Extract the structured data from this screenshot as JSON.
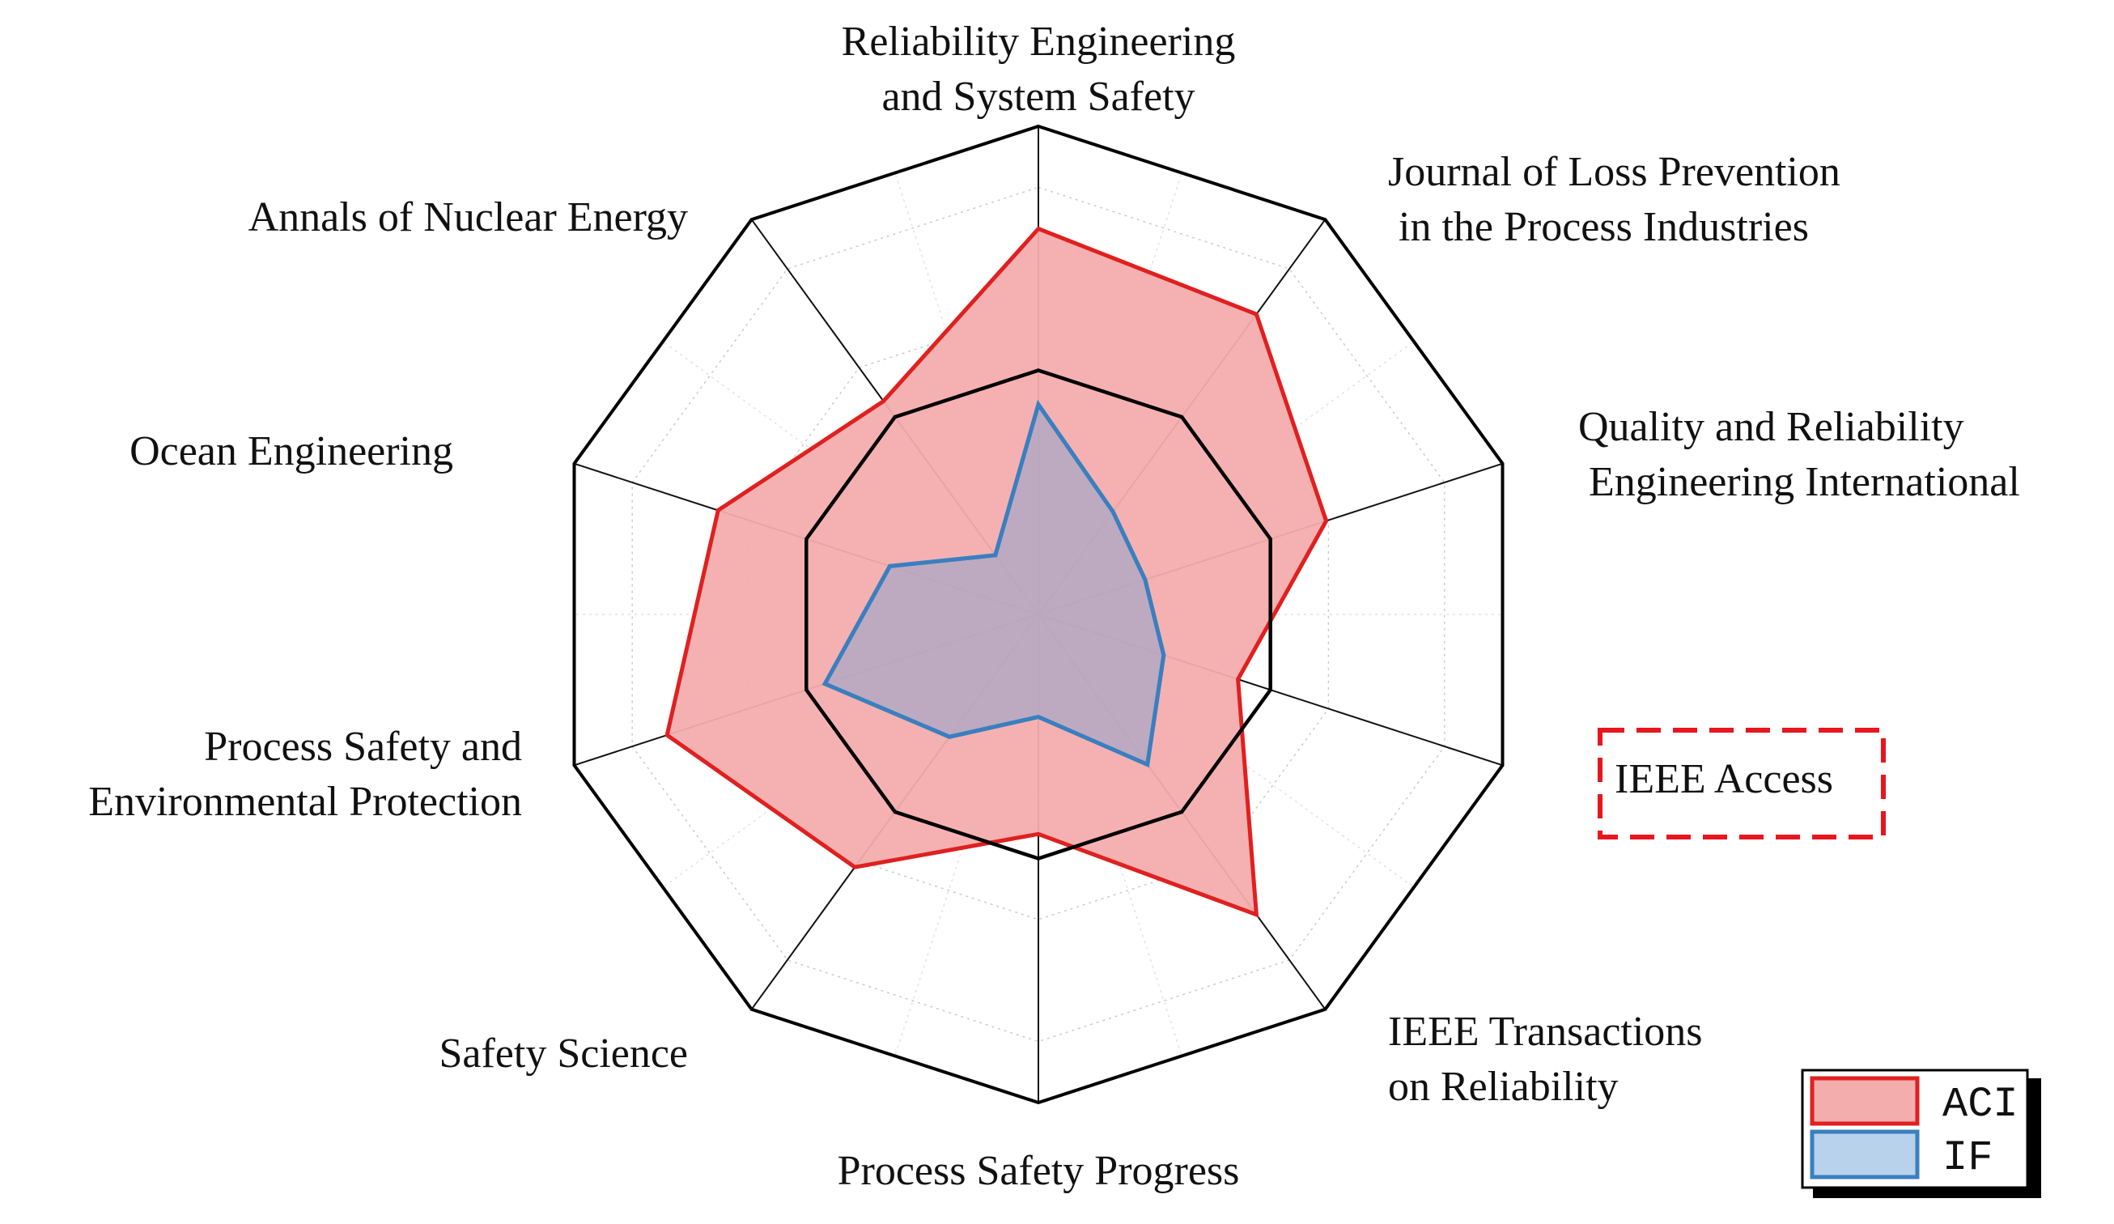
{
  "chart_data": {
    "type": "radar",
    "title": "",
    "axes": [
      {
        "label_lines": [
          "Reliability Engineering",
          "and System Safety"
        ],
        "anchor": "middle"
      },
      {
        "label_lines": [
          "Journal of Loss Prevention",
          " in the Process Industries"
        ],
        "anchor": "start"
      },
      {
        "label_lines": [
          "Quality and Reliability",
          " Engineering International"
        ],
        "anchor": "start"
      },
      {
        "label_lines": [
          "IEEE Access"
        ],
        "anchor": "start",
        "highlighted": true
      },
      {
        "label_lines": [
          "IEEE Transactions",
          "on Reliability"
        ],
        "anchor": "start"
      },
      {
        "label_lines": [
          "Process Safety Progress"
        ],
        "anchor": "middle"
      },
      {
        "label_lines": [
          "Safety Science"
        ],
        "anchor": "end"
      },
      {
        "label_lines": [
          "Process Safety and",
          "Environmental Protection"
        ],
        "anchor": "end"
      },
      {
        "label_lines": [
          "Ocean Engineering"
        ],
        "anchor": "end"
      },
      {
        "label_lines": [
          "Annals of Nuclear Energy"
        ],
        "anchor": "end"
      }
    ],
    "rlim": [
      0,
      1
    ],
    "grid_rings": [
      0.25,
      0.5,
      0.75,
      1.0
    ],
    "emphasized_ring": 0.5,
    "series": [
      {
        "name": "ACI",
        "values": [
          0.79,
          0.76,
          0.62,
          0.43,
          0.76,
          0.45,
          0.64,
          0.8,
          0.69,
          0.54
        ],
        "color": "#e02020",
        "fill": "#f4adad"
      },
      {
        "name": "IF",
        "values": [
          0.43,
          0.26,
          0.23,
          0.27,
          0.38,
          0.21,
          0.31,
          0.46,
          0.32,
          0.15
        ],
        "color": "#3a7fbf",
        "fill": "#a9a8c6"
      }
    ],
    "legend": {
      "position": "bottom-right",
      "entries": [
        "ACI",
        "IF"
      ],
      "swatch_fills": [
        "#f4adad",
        "#b7d2ea"
      ]
    },
    "highlight_color": "#e8161e"
  }
}
